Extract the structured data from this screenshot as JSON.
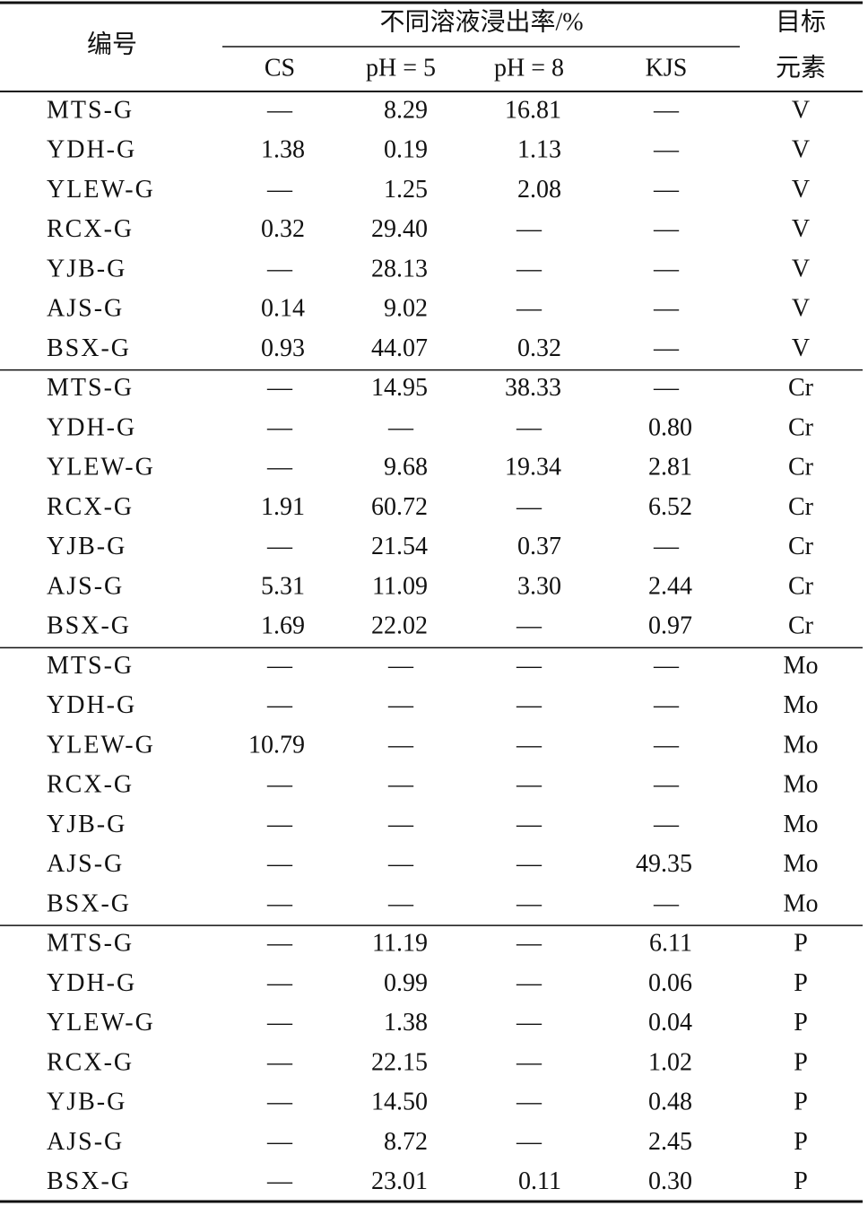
{
  "table": {
    "header": {
      "id": "编号",
      "group": "不同溶液浸出率/%",
      "columns": [
        "CS",
        "pH = 5",
        "pH = 8",
        "KJS"
      ],
      "target": [
        "目标",
        "元素"
      ]
    },
    "rows": [
      [
        "MTS-G",
        "—",
        "8.29",
        "16.81",
        "—",
        "V"
      ],
      [
        "YDH-G",
        "1.38",
        "0.19",
        "1.13",
        "—",
        "V"
      ],
      [
        "YLEW-G",
        "—",
        "1.25",
        "2.08",
        "—",
        "V"
      ],
      [
        "RCX-G",
        "0.32",
        "29.40",
        "—",
        "—",
        "V"
      ],
      [
        "YJB-G",
        "—",
        "28.13",
        "—",
        "—",
        "V"
      ],
      [
        "AJS-G",
        "0.14",
        "9.02",
        "—",
        "—",
        "V"
      ],
      [
        "BSX-G",
        "0.93",
        "44.07",
        "0.32",
        "—",
        "V"
      ],
      [
        "MTS-G",
        "—",
        "14.95",
        "38.33",
        "—",
        "Cr"
      ],
      [
        "YDH-G",
        "—",
        "—",
        "—",
        "0.80",
        "Cr"
      ],
      [
        "YLEW-G",
        "—",
        "9.68",
        "19.34",
        "2.81",
        "Cr"
      ],
      [
        "RCX-G",
        "1.91",
        "60.72",
        "—",
        "6.52",
        "Cr"
      ],
      [
        "YJB-G",
        "—",
        "21.54",
        "0.37",
        "—",
        "Cr"
      ],
      [
        "AJS-G",
        "5.31",
        "11.09",
        "3.30",
        "2.44",
        "Cr"
      ],
      [
        "BSX-G",
        "1.69",
        "22.02",
        "—",
        "0.97",
        "Cr"
      ],
      [
        "MTS-G",
        "—",
        "—",
        "—",
        "—",
        "Mo"
      ],
      [
        "YDH-G",
        "—",
        "—",
        "—",
        "—",
        "Mo"
      ],
      [
        "YLEW-G",
        "10.79",
        "—",
        "—",
        "—",
        "Mo"
      ],
      [
        "RCX-G",
        "—",
        "—",
        "—",
        "—",
        "Mo"
      ],
      [
        "YJB-G",
        "—",
        "—",
        "—",
        "—",
        "Mo"
      ],
      [
        "AJS-G",
        "—",
        "—",
        "—",
        "49.35",
        "Mo"
      ],
      [
        "BSX-G",
        "—",
        "—",
        "—",
        "—",
        "Mo"
      ],
      [
        "MTS-G",
        "—",
        "11.19",
        "—",
        "6.11",
        "P"
      ],
      [
        "YDH-G",
        "—",
        "0.99",
        "—",
        "0.06",
        "P"
      ],
      [
        "YLEW-G",
        "—",
        "1.38",
        "—",
        "0.04",
        "P"
      ],
      [
        "RCX-G",
        "—",
        "22.15",
        "—",
        "1.02",
        "P"
      ],
      [
        "YJB-G",
        "—",
        "14.50",
        "—",
        "0.48",
        "P"
      ],
      [
        "AJS-G",
        "—",
        "8.72",
        "—",
        "2.45",
        "P"
      ],
      [
        "BSX-G",
        "—",
        "23.01",
        "0.11",
        "0.30",
        "P"
      ]
    ]
  }
}
